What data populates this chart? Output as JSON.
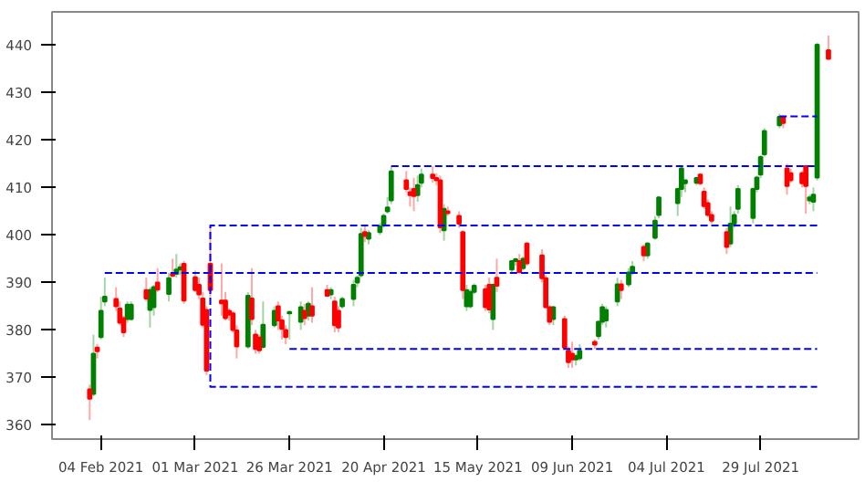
{
  "chart_data": {
    "type": "candlestick",
    "xlim": [
      "2021-01-22",
      "2021-08-24"
    ],
    "ylim": [
      357,
      447
    ],
    "xticks": [
      {
        "value": "2021-02-04",
        "label": "04 Feb 2021"
      },
      {
        "value": "2021-03-01",
        "label": "01 Mar 2021"
      },
      {
        "value": "2021-03-26",
        "label": "26 Mar 2021"
      },
      {
        "value": "2021-04-20",
        "label": "20 Apr 2021"
      },
      {
        "value": "2021-05-15",
        "label": "15 May 2021"
      },
      {
        "value": "2021-06-09",
        "label": "09 Jun 2021"
      },
      {
        "value": "2021-07-04",
        "label": "04 Jul 2021"
      },
      {
        "value": "2021-07-29",
        "label": "29 Jul 2021"
      }
    ],
    "yticks": [
      360,
      370,
      380,
      390,
      400,
      410,
      420,
      430,
      440
    ],
    "grid": false,
    "series": [
      {
        "color": "#008000",
        "x": [
          "2021-02-02",
          "2021-02-04",
          "2021-02-05",
          "2021-02-11",
          "2021-02-12",
          "2021-02-17",
          "2021-02-18",
          "2021-02-22",
          "2021-02-24",
          "2021-02-25",
          "2021-03-15",
          "2021-03-19",
          "2021-03-22",
          "2021-03-26",
          "2021-03-29",
          "2021-03-31",
          "2021-04-06",
          "2021-04-09",
          "2021-04-12",
          "2021-04-13",
          "2021-04-14",
          "2021-04-16",
          "2021-04-19",
          "2021-04-20",
          "2021-04-21",
          "2021-04-22",
          "2021-04-29",
          "2021-04-30",
          "2021-05-06",
          "2021-05-12",
          "2021-05-13",
          "2021-05-14",
          "2021-05-19",
          "2021-05-24",
          "2021-05-25",
          "2021-05-27",
          "2021-06-04",
          "2021-06-10",
          "2021-06-11",
          "2021-06-16",
          "2021-06-17",
          "2021-06-18",
          "2021-06-21",
          "2021-06-24",
          "2021-06-25",
          "2021-06-29",
          "2021-07-01",
          "2021-07-02",
          "2021-07-07",
          "2021-07-08",
          "2021-07-09",
          "2021-07-12",
          "2021-07-21",
          "2021-07-22",
          "2021-07-23",
          "2021-07-27",
          "2021-07-28",
          "2021-07-29",
          "2021-07-30",
          "2021-08-03",
          "2021-08-11",
          "2021-08-12",
          "2021-08-13"
        ],
        "ohlc": [
          [
            366.5,
            379,
            366,
            375
          ],
          [
            378.5,
            387,
            378,
            384
          ],
          [
            386,
            391,
            385,
            387
          ],
          [
            382.3,
            386,
            381.5,
            385.3
          ],
          [
            382.3,
            386,
            382,
            385.3
          ],
          [
            384.2,
            389,
            380.5,
            388.4
          ],
          [
            384.8,
            389.5,
            383,
            389
          ],
          [
            387.6,
            392,
            386,
            390.9
          ],
          [
            391.8,
            396,
            391,
            392.7
          ],
          [
            392.7,
            394,
            391.5,
            393.2
          ],
          [
            376.5,
            388,
            376,
            387.2
          ],
          [
            376.4,
            386,
            376,
            381.1
          ],
          [
            381,
            385,
            380.5,
            384
          ],
          [
            383.5,
            384,
            378,
            383.8
          ],
          [
            381.7,
            386,
            380,
            384.8
          ],
          [
            383,
            386,
            382,
            385.5
          ],
          [
            387.5,
            389,
            386.5,
            388.4
          ],
          [
            385,
            387,
            384.5,
            386.5
          ],
          [
            386.5,
            390.5,
            385,
            389.5
          ],
          [
            390,
            391.5,
            389,
            391
          ],
          [
            391.5,
            401.5,
            391,
            400.2
          ],
          [
            399.2,
            401,
            398,
            400.4
          ],
          [
            400.6,
            402.5,
            400,
            401.8
          ],
          [
            402,
            404.5,
            401.5,
            404
          ],
          [
            405,
            408,
            404.5,
            405.8
          ],
          [
            407.3,
            414.5,
            406.5,
            413.4
          ],
          [
            408.4,
            412.5,
            407,
            410.5
          ],
          [
            411,
            414,
            410,
            412.7
          ],
          [
            401,
            406.5,
            398.8,
            405.5
          ],
          [
            385,
            389.5,
            384,
            388.4
          ],
          [
            385,
            388.5,
            384.5,
            388
          ],
          [
            388,
            389.8,
            387.5,
            389.3
          ],
          [
            382.3,
            389.8,
            380,
            389.5
          ],
          [
            392.7,
            394.5,
            392,
            394.5
          ],
          [
            394.5,
            395.2,
            393.5,
            394.9
          ],
          [
            393,
            395.5,
            392.5,
            395
          ],
          [
            382.3,
            385,
            381,
            384.8
          ],
          [
            373.8,
            375,
            372.5,
            374.5
          ],
          [
            374,
            377,
            373.5,
            375.6
          ],
          [
            378.7,
            382,
            378,
            381.7
          ],
          [
            381.7,
            385.5,
            381,
            384.8
          ],
          [
            382,
            385,
            380.5,
            384.2
          ],
          [
            386,
            391,
            385,
            389.6
          ],
          [
            389.6,
            393,
            389,
            392.1
          ],
          [
            392.1,
            394.5,
            391.5,
            393.3
          ],
          [
            395.7,
            398.5,
            395,
            398.2
          ],
          [
            399.4,
            404,
            399,
            403
          ],
          [
            404.2,
            408,
            403.5,
            407.9
          ],
          [
            406.7,
            410,
            404,
            409.7
          ],
          [
            409.7,
            414.5,
            408,
            414
          ],
          [
            410.9,
            411.5,
            409,
            411.5
          ],
          [
            411,
            412.3,
            410.5,
            412
          ],
          [
            398.2,
            406,
            397.5,
            402.4
          ],
          [
            402.4,
            405,
            401.5,
            404.2
          ],
          [
            405.5,
            410.5,
            404.5,
            409.7
          ],
          [
            403.6,
            410,
            402.5,
            409.7
          ],
          [
            409.7,
            412.5,
            409,
            412.1
          ],
          [
            412.7,
            416.8,
            412,
            416.4
          ],
          [
            417,
            422.5,
            416.5,
            421.9
          ],
          [
            423.1,
            425.5,
            422.5,
            424.9
          ],
          [
            407.3,
            408.5,
            406.5,
            407.9
          ],
          [
            407,
            410,
            405,
            408.5
          ],
          [
            412.1,
            440.5,
            411.5,
            440.1
          ]
        ]
      },
      {
        "color": "#ff0000",
        "x": [
          "2021-02-01",
          "2021-02-03",
          "2021-02-08",
          "2021-02-09",
          "2021-02-10",
          "2021-02-16",
          "2021-02-19",
          "2021-02-23",
          "2021-02-26",
          "2021-03-01",
          "2021-03-02",
          "2021-03-03",
          "2021-03-04",
          "2021-03-05",
          "2021-03-08",
          "2021-03-09",
          "2021-03-10",
          "2021-03-11",
          "2021-03-12",
          "2021-03-16",
          "2021-03-17",
          "2021-03-18",
          "2021-03-23",
          "2021-03-24",
          "2021-03-25",
          "2021-03-30",
          "2021-04-01",
          "2021-04-05",
          "2021-04-07",
          "2021-04-08",
          "2021-04-15",
          "2021-04-26",
          "2021-04-27",
          "2021-04-28",
          "2021-05-03",
          "2021-05-04",
          "2021-05-05",
          "2021-05-07",
          "2021-05-10",
          "2021-05-11",
          "2021-05-17",
          "2021-05-18",
          "2021-05-20",
          "2021-05-26",
          "2021-05-28",
          "2021-06-01",
          "2021-06-02",
          "2021-06-03",
          "2021-06-07",
          "2021-06-08",
          "2021-06-09",
          "2021-06-15",
          "2021-06-22",
          "2021-06-28",
          "2021-07-13",
          "2021-07-14",
          "2021-07-15",
          "2021-07-16",
          "2021-07-20",
          "2021-08-04",
          "2021-08-05",
          "2021-08-06",
          "2021-08-09",
          "2021-08-10",
          "2021-08-16"
        ],
        "ohlc": [
          [
            367.5,
            368.5,
            361,
            365.5
          ],
          [
            376.3,
            377,
            374,
            375.5
          ],
          [
            386.5,
            389,
            384,
            385
          ],
          [
            384.5,
            386,
            381,
            381.5
          ],
          [
            382.5,
            383,
            378.5,
            379.5
          ],
          [
            388.4,
            391,
            386,
            386.6
          ],
          [
            390,
            393,
            388,
            388.5
          ],
          [
            391.8,
            395,
            391,
            391.4
          ],
          [
            393.9,
            394.5,
            385.5,
            386.2
          ],
          [
            391.1,
            392.5,
            388,
            388.4
          ],
          [
            389.5,
            391,
            386.5,
            387.5
          ],
          [
            386.6,
            388,
            380.5,
            381.1
          ],
          [
            384.2,
            385,
            370.5,
            371.4
          ],
          [
            393.9,
            401.8,
            387,
            388.4
          ],
          [
            386.2,
            394,
            383,
            385.6
          ],
          [
            386.2,
            388,
            382,
            382.5
          ],
          [
            384,
            384.5,
            382,
            383.2
          ],
          [
            383.5,
            384,
            379.5,
            380
          ],
          [
            379.9,
            381,
            374,
            376.5
          ],
          [
            386.6,
            393,
            381,
            382.3
          ],
          [
            379,
            380,
            375,
            376
          ],
          [
            378.4,
            379,
            375,
            375.7
          ],
          [
            385,
            386,
            380,
            382
          ],
          [
            382,
            383,
            378,
            380.2
          ],
          [
            380,
            381,
            377,
            378.5
          ],
          [
            384,
            385.5,
            381,
            382.5
          ],
          [
            385,
            389,
            381.5,
            383
          ],
          [
            388.4,
            389.5,
            387,
            387.2
          ],
          [
            386,
            387,
            379.5,
            381
          ],
          [
            384,
            385,
            379.5,
            380.5
          ],
          [
            400.6,
            402,
            398.5,
            399.8
          ],
          [
            411.5,
            413.5,
            409,
            409.7
          ],
          [
            409,
            410,
            406,
            408.4
          ],
          [
            409.7,
            412,
            405,
            408.2
          ],
          [
            412.7,
            414.5,
            411,
            412
          ],
          [
            412,
            413,
            410.5,
            411.5
          ],
          [
            411.5,
            412.5,
            400.5,
            401.6
          ],
          [
            405,
            406,
            404,
            404.6
          ],
          [
            404,
            405,
            401.5,
            402.4
          ],
          [
            400.6,
            401,
            386.5,
            388.4
          ],
          [
            388.6,
            389.5,
            384,
            384.8
          ],
          [
            389.5,
            391,
            383.5,
            384.3
          ],
          [
            391,
            395,
            388,
            389.3
          ],
          [
            394.5,
            396,
            391.8,
            392.2
          ],
          [
            398.2,
            398.5,
            393.5,
            394
          ],
          [
            395.7,
            397,
            390,
            390.9
          ],
          [
            390.9,
            391.5,
            384.5,
            384.8
          ],
          [
            384.8,
            385.2,
            381,
            381.7
          ],
          [
            382.3,
            383,
            376,
            376.3
          ],
          [
            375.6,
            376.5,
            372,
            373.2
          ],
          [
            375,
            377.5,
            372,
            373.8
          ],
          [
            377.5,
            378,
            376,
            376.9
          ],
          [
            389.6,
            390.5,
            386.5,
            388.4
          ],
          [
            397.5,
            398,
            394.5,
            395.7
          ],
          [
            412.7,
            413,
            410.5,
            410.9
          ],
          [
            409.1,
            410,
            405.5,
            406.1
          ],
          [
            406.7,
            407.5,
            403.8,
            404.2
          ],
          [
            404.2,
            405,
            402.4,
            403
          ],
          [
            400.6,
            401.5,
            396,
            397.5
          ],
          [
            424.9,
            425.2,
            422.5,
            423.6
          ],
          [
            414,
            415,
            408.5,
            410.3
          ],
          [
            413,
            414,
            411,
            411.5
          ],
          [
            413,
            413.5,
            410,
            410.9
          ],
          [
            414.5,
            414.7,
            404.5,
            410.3
          ],
          [
            438.9,
            442,
            437,
            437.1
          ]
        ]
      },
      {
        "type": "line",
        "color": "#0000ff",
        "line_style": "dashed",
        "x": [
          "2021-02-05",
          "2021-08-13"
        ],
        "values": [
          392,
          392
        ]
      },
      {
        "type": "line",
        "color": "#0000ff",
        "line_style": "dashed",
        "x": [
          "2021-08-13",
          "2021-03-05",
          "2021-03-05",
          "2021-08-13"
        ],
        "values": [
          402,
          402,
          368,
          368
        ]
      },
      {
        "type": "line",
        "color": "#0000ff",
        "line_style": "dashed",
        "x": [
          "2021-03-26",
          "2021-08-13"
        ],
        "values": [
          376,
          376
        ]
      },
      {
        "type": "line",
        "color": "#0000ff",
        "line_style": "dashed",
        "x": [
          "2021-04-22",
          "2021-08-13"
        ],
        "values": [
          414.5,
          414.5
        ]
      },
      {
        "type": "line",
        "color": "#0000ff",
        "line_style": "dashed",
        "x": [
          "2021-08-03",
          "2021-08-13"
        ],
        "values": [
          425,
          425
        ]
      }
    ]
  }
}
